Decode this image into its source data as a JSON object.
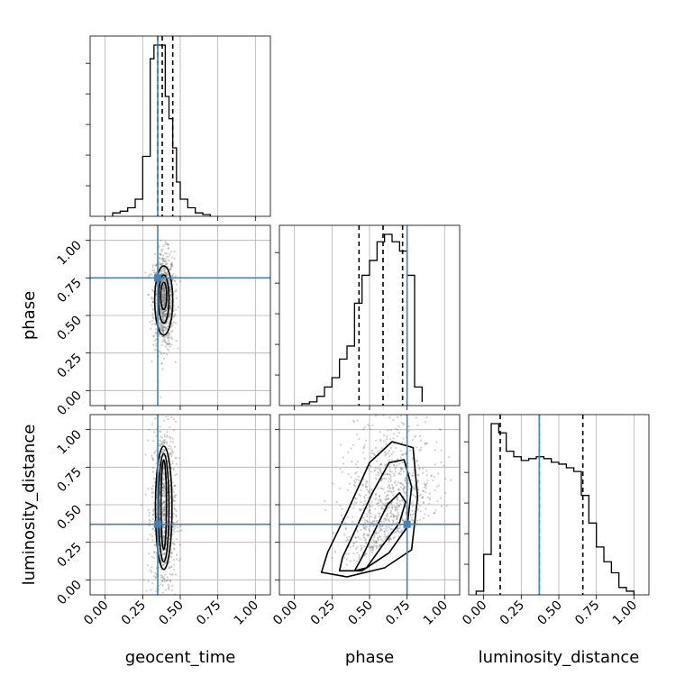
{
  "chart_data": {
    "type": "corner",
    "parameters": [
      "geocent_time",
      "phase",
      "luminosity_distance"
    ],
    "ticks": [
      0.0,
      0.25,
      0.5,
      0.75,
      1.0
    ],
    "tick_labels": [
      "0.00",
      "0.25",
      "0.50",
      "0.75",
      "1.00"
    ],
    "axis_range": [
      -0.1,
      1.1
    ],
    "grid": true,
    "colors": {
      "truth": "#4682b4",
      "hist": "#000000",
      "quantile": "#000000",
      "density": "#4d4d4d"
    },
    "truths": {
      "geocent_time": 0.35,
      "phase": 0.75,
      "luminosity_distance": 0.37
    },
    "histograms": [
      {
        "parameter": "geocent_time",
        "bin_edges": [
          0.05,
          0.1,
          0.15,
          0.2,
          0.25,
          0.3,
          0.325,
          0.35,
          0.375,
          0.4,
          0.425,
          0.45,
          0.475,
          0.5,
          0.55,
          0.6,
          0.65,
          0.7
        ],
        "counts": [
          0.02,
          0.03,
          0.05,
          0.1,
          0.35,
          0.92,
          1.0,
          1.0,
          1.0,
          0.7,
          0.57,
          0.4,
          0.2,
          0.1,
          0.05,
          0.02,
          0.01
        ],
        "quantiles": [
          0.35,
          0.38,
          0.45
        ]
      },
      {
        "parameter": "phase",
        "bin_edges": [
          0.05,
          0.1,
          0.15,
          0.2,
          0.25,
          0.3,
          0.35,
          0.4,
          0.45,
          0.5,
          0.55,
          0.6,
          0.65,
          0.7,
          0.75,
          0.8,
          0.85
        ],
        "counts": [
          0.01,
          0.02,
          0.05,
          0.1,
          0.15,
          0.25,
          0.32,
          0.55,
          0.7,
          0.78,
          0.88,
          0.92,
          0.88,
          0.83,
          0.7,
          0.1,
          0.02
        ],
        "quantiles": [
          0.43,
          0.59,
          0.72
        ]
      },
      {
        "parameter": "luminosity_distance",
        "bin_edges": [
          -0.05,
          0.0,
          0.05,
          0.1,
          0.15,
          0.2,
          0.25,
          0.3,
          0.35,
          0.4,
          0.45,
          0.5,
          0.55,
          0.6,
          0.65,
          0.7,
          0.75,
          0.8,
          0.85,
          0.9,
          0.95,
          1.0
        ],
        "counts": [
          0.02,
          0.22,
          0.93,
          0.88,
          0.78,
          0.75,
          0.73,
          0.74,
          0.75,
          0.74,
          0.72,
          0.71,
          0.69,
          0.67,
          0.54,
          0.39,
          0.26,
          0.18,
          0.12,
          0.04,
          0.02
        ],
        "quantiles": [
          0.11,
          0.37,
          0.66
        ]
      }
    ],
    "scatter_panels": [
      {
        "x": "geocent_time",
        "y": "phase",
        "center": [
          0.39,
          0.6
        ],
        "spread": [
          0.035,
          0.16
        ],
        "contours": [
          {
            "cx": 0.39,
            "cy": 0.6,
            "rx": 0.06,
            "ry": 0.23
          },
          {
            "cx": 0.39,
            "cy": 0.61,
            "rx": 0.035,
            "ry": 0.16
          },
          {
            "cx": 0.39,
            "cy": 0.63,
            "rx": 0.02,
            "ry": 0.09
          }
        ]
      },
      {
        "x": "geocent_time",
        "y": "luminosity_distance",
        "center": [
          0.39,
          0.45
        ],
        "spread": [
          0.04,
          0.3
        ],
        "contours": [
          {
            "cx": 0.39,
            "cy": 0.48,
            "rx": 0.055,
            "ry": 0.41
          },
          {
            "cx": 0.39,
            "cy": 0.48,
            "rx": 0.035,
            "ry": 0.36
          },
          {
            "cx": 0.39,
            "cy": 0.5,
            "rx": 0.018,
            "ry": 0.3
          }
        ]
      },
      {
        "x": "phase",
        "y": "luminosity_distance",
        "center": [
          0.62,
          0.42
        ],
        "spread": [
          0.15,
          0.25
        ],
        "contours": [
          {
            "points": [
              [
                0.18,
                0.05
              ],
              [
                0.35,
                0.02
              ],
              [
                0.6,
                0.08
              ],
              [
                0.78,
                0.2
              ],
              [
                0.82,
                0.55
              ],
              [
                0.79,
                0.88
              ],
              [
                0.65,
                0.92
              ],
              [
                0.5,
                0.78
              ],
              [
                0.35,
                0.45
              ],
              [
                0.22,
                0.18
              ]
            ]
          },
          {
            "points": [
              [
                0.3,
                0.06
              ],
              [
                0.45,
                0.06
              ],
              [
                0.63,
                0.18
              ],
              [
                0.75,
                0.35
              ],
              [
                0.78,
                0.62
              ],
              [
                0.73,
                0.8
              ],
              [
                0.63,
                0.78
              ],
              [
                0.52,
                0.58
              ],
              [
                0.4,
                0.32
              ],
              [
                0.32,
                0.15
              ]
            ]
          },
          {
            "points": [
              [
                0.4,
                0.06
              ],
              [
                0.48,
                0.08
              ],
              [
                0.58,
                0.22
              ],
              [
                0.7,
                0.38
              ],
              [
                0.74,
                0.52
              ],
              [
                0.7,
                0.58
              ],
              [
                0.62,
                0.5
              ],
              [
                0.52,
                0.3
              ],
              [
                0.45,
                0.15
              ]
            ]
          }
        ]
      }
    ]
  }
}
